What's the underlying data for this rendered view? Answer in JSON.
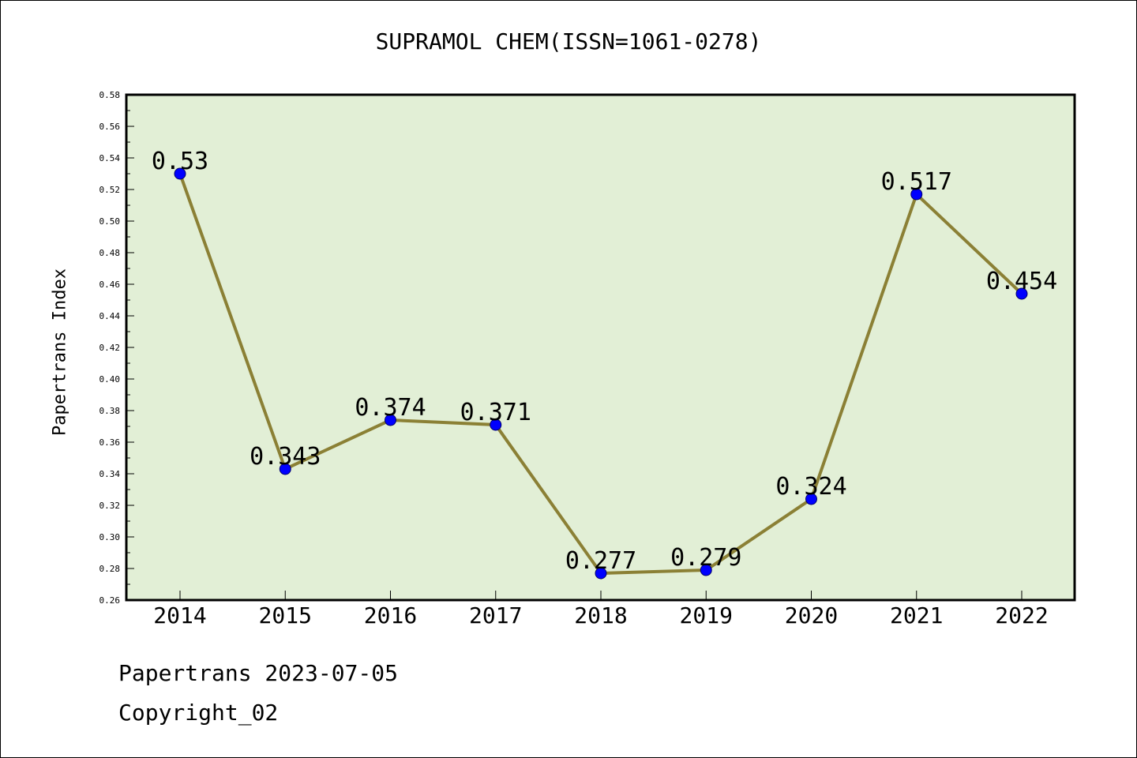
{
  "footer": {
    "date_line": "Papertrans 2023-07-05",
    "copyright_line": "Copyright_02"
  },
  "colors": {
    "plot_background": "#e2efd6",
    "line": "#8b8035",
    "marker": "#0000ff"
  },
  "chart_data": {
    "type": "line",
    "title": "SUPRAMOL CHEM(ISSN=1061-0278)",
    "xlabel": "",
    "ylabel": "Papertrans Index",
    "categories": [
      "2014",
      "2015",
      "2016",
      "2017",
      "2018",
      "2019",
      "2020",
      "2021",
      "2022"
    ],
    "values": [
      0.53,
      0.343,
      0.374,
      0.371,
      0.277,
      0.279,
      0.324,
      0.517,
      0.454
    ],
    "data_labels": [
      "0.53",
      "0.343",
      "0.374",
      "0.371",
      "0.277",
      "0.279",
      "0.324",
      "0.517",
      "0.454"
    ],
    "ylim": [
      0.26,
      0.58
    ],
    "yticks": [
      "0.26",
      "0.28",
      "0.30",
      "0.32",
      "0.34",
      "0.36",
      "0.38",
      "0.40",
      "0.42",
      "0.44",
      "0.46",
      "0.48",
      "0.50",
      "0.52",
      "0.54",
      "0.56",
      "0.58"
    ],
    "grid": false,
    "legend": "none"
  }
}
